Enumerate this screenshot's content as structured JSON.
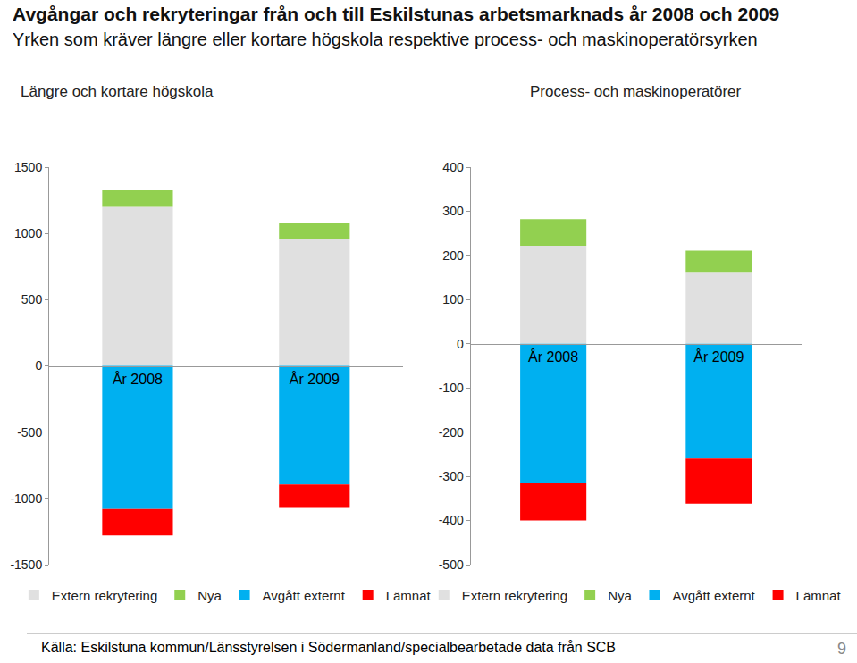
{
  "title": "Avgångar och rekryteringar från och till Eskilstunas arbetsmarknads år 2008 och 2009",
  "subtitle": "Yrken som kräver längre eller kortare högskola respektive process- och maskinoperatörsyrken",
  "source": "Källa: Eskilstuna kommun/Länsstyrelsen i Södermanland/specialbearbetade data från SCB",
  "page": 9,
  "chart_data": [
    {
      "type": "bar",
      "title": "Längre och kortare högskola",
      "stacked": true,
      "grid": false,
      "legend": "bottom",
      "categories": [
        "År 2008",
        "År 2009"
      ],
      "ylim": [
        -1500,
        1500
      ],
      "yticks": [
        -1500,
        -1000,
        -500,
        0,
        500,
        1000,
        1500
      ],
      "series": [
        {
          "name": "Extern rekrytering",
          "color": "#e0e0e0",
          "values": [
            1200,
            955
          ]
        },
        {
          "name": "Nya",
          "color": "#92d050",
          "values": [
            125,
            120
          ]
        },
        {
          "name": "Avgått externt",
          "color": "#00b0f0",
          "values": [
            -1080,
            -895
          ]
        },
        {
          "name": "Lämnat",
          "color": "#ff0000",
          "values": [
            -200,
            -170
          ]
        }
      ]
    },
    {
      "type": "bar",
      "title": "Process- och maskinoperatörer",
      "stacked": true,
      "grid": false,
      "legend": "bottom",
      "categories": [
        "År 2008",
        "År 2009"
      ],
      "ylim": [
        -500,
        400
      ],
      "yticks": [
        -500,
        -400,
        -300,
        -200,
        -100,
        0,
        100,
        200,
        300,
        400
      ],
      "series": [
        {
          "name": "Extern rekrytering",
          "color": "#e0e0e0",
          "values": [
            222,
            163
          ]
        },
        {
          "name": "Nya",
          "color": "#92d050",
          "values": [
            60,
            48
          ]
        },
        {
          "name": "Avgått externt",
          "color": "#00b0f0",
          "values": [
            -316,
            -260
          ]
        },
        {
          "name": "Lämnat",
          "color": "#ff0000",
          "values": [
            -84,
            -102
          ]
        }
      ]
    }
  ]
}
